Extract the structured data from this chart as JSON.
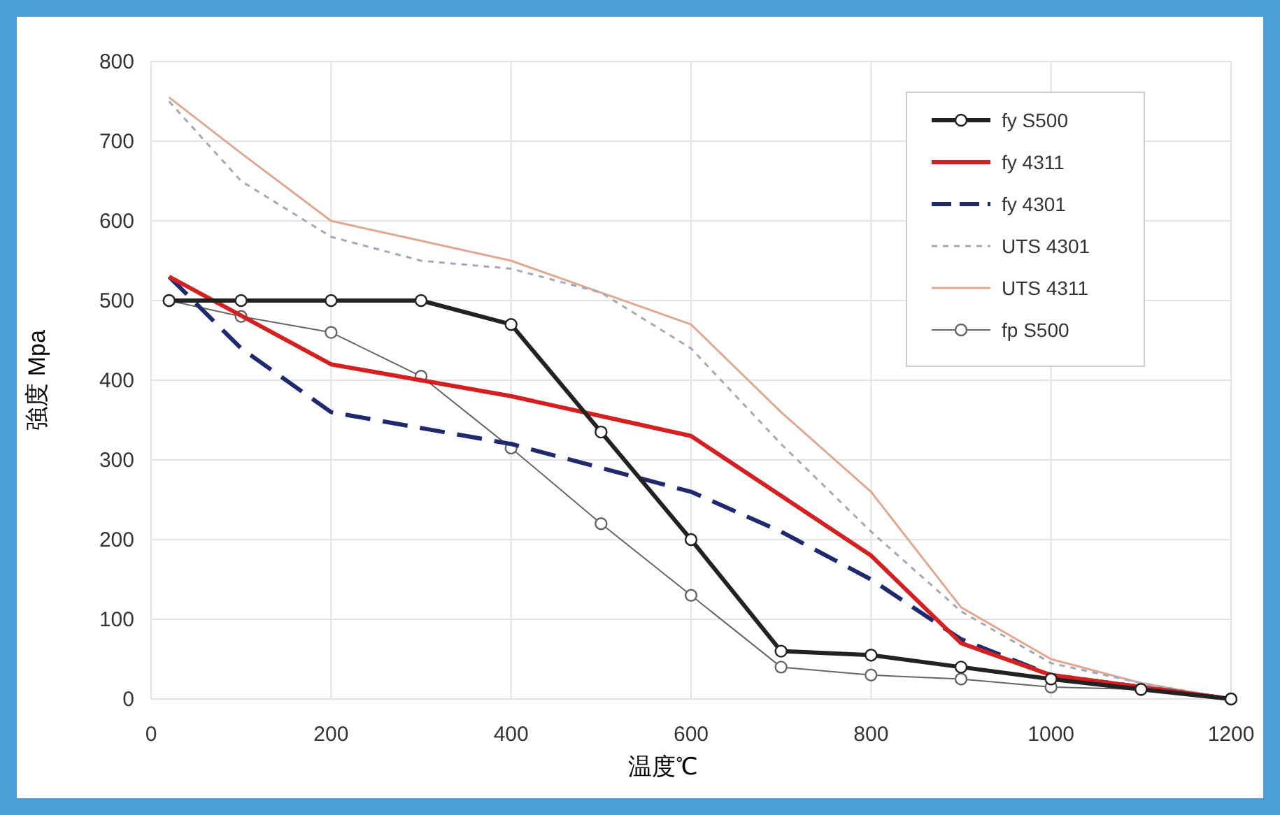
{
  "chart_data": {
    "type": "line",
    "xlabel": "温度℃",
    "ylabel": "強度 Mpa",
    "xlim": [
      0,
      1200
    ],
    "ylim": [
      0,
      800
    ],
    "xticks": [
      0,
      200,
      400,
      600,
      800,
      1000,
      1200
    ],
    "yticks": [
      0,
      100,
      200,
      300,
      400,
      500,
      600,
      700,
      800
    ],
    "grid": true,
    "legend": "top right",
    "series": [
      {
        "name": "fy S500",
        "color": "#222222",
        "marker": "circle",
        "line_style": "solid",
        "x": [
          20,
          100,
          200,
          300,
          400,
          500,
          600,
          700,
          800,
          900,
          1000,
          1100,
          1200
        ],
        "values": [
          500,
          500,
          500,
          500,
          470,
          335,
          200,
          60,
          55,
          40,
          25,
          12,
          0
        ]
      },
      {
        "name": "fy 4311",
        "color": "#d42020",
        "marker": "none",
        "line_style": "solid",
        "x": [
          20,
          200,
          300,
          400,
          500,
          600,
          700,
          800,
          900,
          1000,
          1100,
          1200
        ],
        "values": [
          530,
          420,
          400,
          380,
          355,
          330,
          255,
          180,
          70,
          30,
          15,
          0
        ]
      },
      {
        "name": "fy 4301",
        "color": "#1f2a6e",
        "marker": "none",
        "line_style": "dashed",
        "x": [
          20,
          100,
          200,
          300,
          400,
          500,
          600,
          700,
          800,
          900,
          1000,
          1100,
          1200
        ],
        "values": [
          530,
          440,
          360,
          340,
          320,
          290,
          260,
          210,
          150,
          75,
          30,
          15,
          0
        ]
      },
      {
        "name": "UTS 4301",
        "color": "#a0aab8",
        "marker": "none",
        "line_style": "dotted",
        "x": [
          20,
          100,
          200,
          300,
          400,
          500,
          600,
          700,
          800,
          900,
          1000,
          1100,
          1200
        ],
        "values": [
          750,
          650,
          580,
          550,
          540,
          510,
          440,
          320,
          210,
          110,
          45,
          20,
          0
        ]
      },
      {
        "name": "UTS 4311",
        "color": "#e0a890",
        "marker": "none",
        "line_style": "solid",
        "x": [
          20,
          100,
          200,
          300,
          400,
          500,
          600,
          700,
          800,
          900,
          1000,
          1100,
          1200
        ],
        "values": [
          755,
          685,
          600,
          575,
          550,
          510,
          470,
          360,
          260,
          115,
          50,
          20,
          0
        ]
      },
      {
        "name": "fp S500",
        "color": "#666666",
        "marker": "circle",
        "line_style": "solid",
        "x": [
          20,
          100,
          200,
          300,
          400,
          500,
          600,
          700,
          800,
          900,
          1000,
          1100,
          1200
        ],
        "values": [
          500,
          480,
          460,
          405,
          315,
          220,
          130,
          40,
          30,
          25,
          15,
          12,
          0
        ]
      }
    ]
  }
}
